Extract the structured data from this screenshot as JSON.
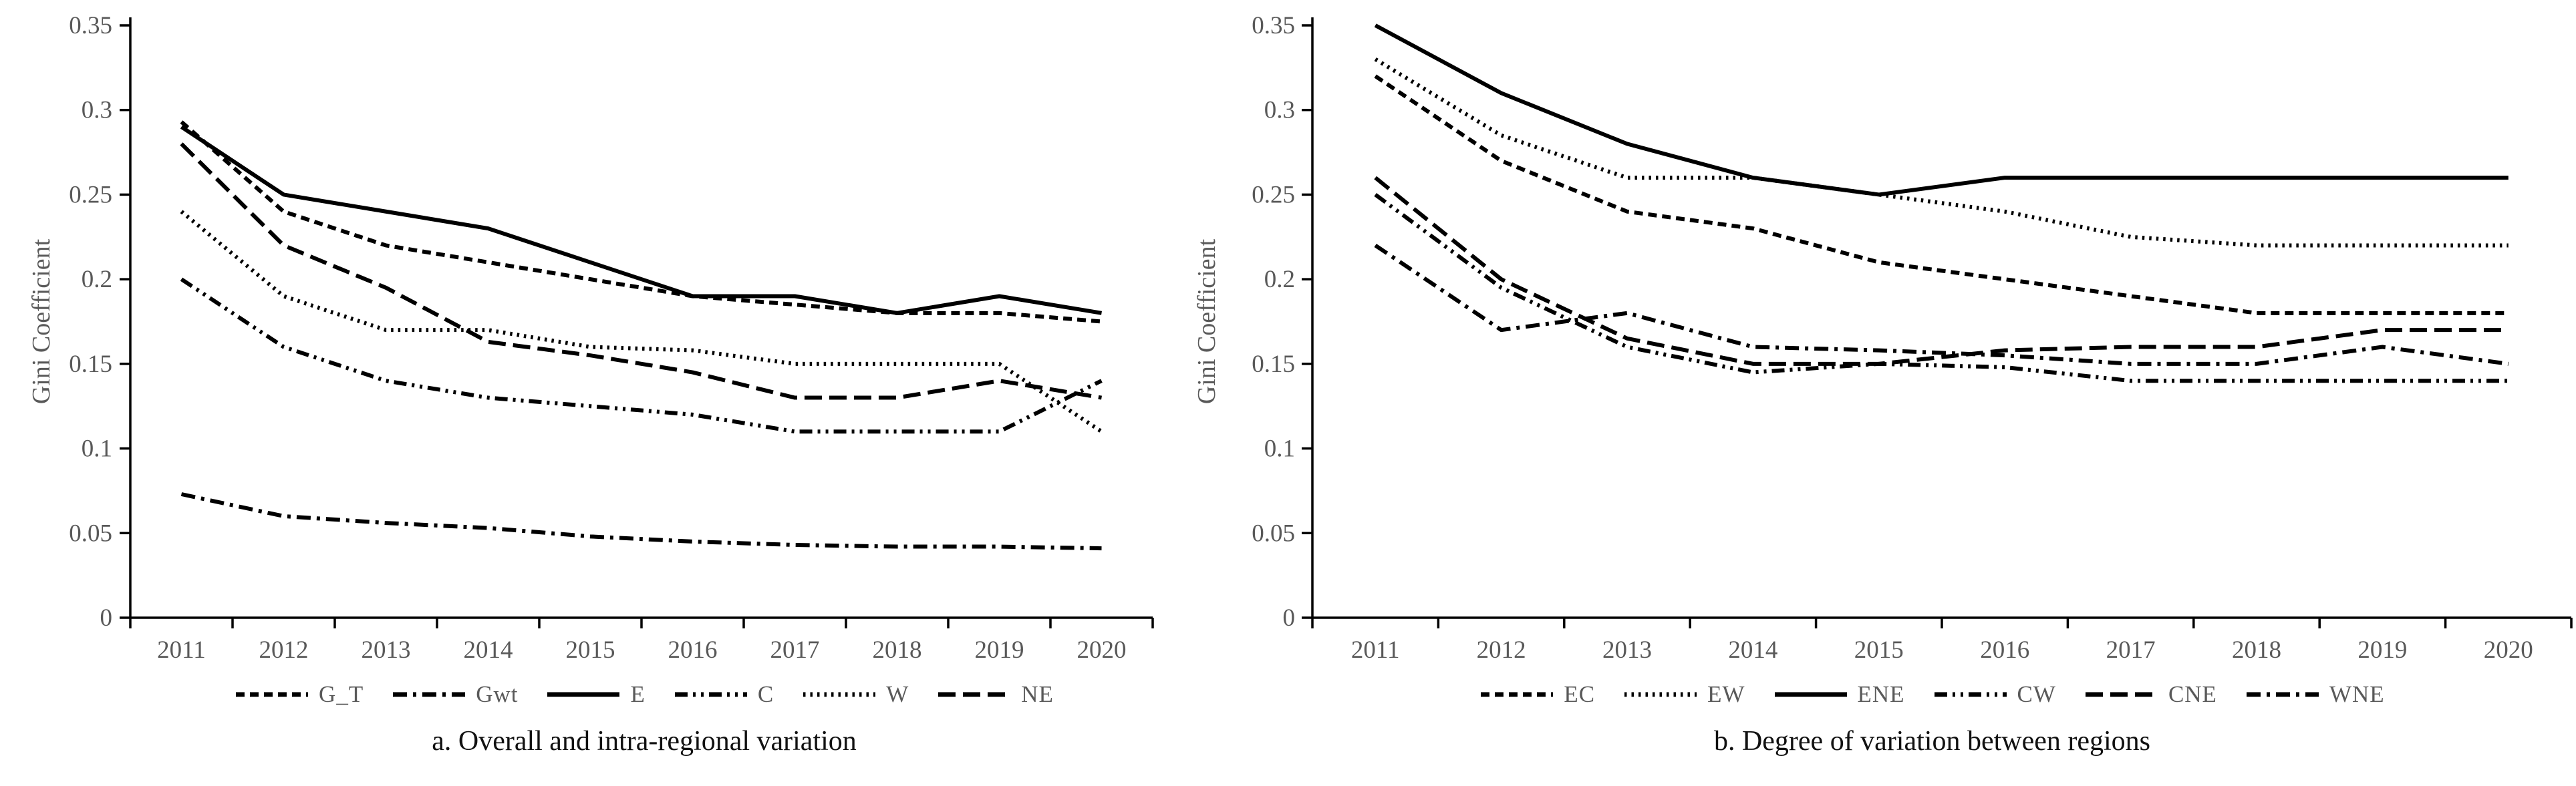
{
  "colors": {
    "line": "#000000",
    "axis": "#000000",
    "tick_label": "#595959",
    "legend_label": "#595959",
    "caption": "#111111",
    "background": "#ffffff"
  },
  "chart_data": [
    {
      "type": "line",
      "panel": "a",
      "title": "a. Overall and intra-regional variation",
      "ylabel": "Gini Coefficient",
      "xlabel": "",
      "grid": false,
      "legend_position": "bottom",
      "ylim": [
        0,
        0.35
      ],
      "y_ticks": [
        "0",
        "0.05",
        "0.1",
        "0.15",
        "0.2",
        "0.25",
        "0.3",
        "0.35"
      ],
      "x": [
        "2011",
        "2012",
        "2013",
        "2014",
        "2015",
        "2016",
        "2017",
        "2018",
        "2019",
        "2020"
      ],
      "series": [
        {
          "name": "G_T",
          "style": "short-dash",
          "values": [
            0.293,
            0.24,
            0.22,
            0.21,
            0.2,
            0.19,
            0.185,
            0.18,
            0.18,
            0.175
          ]
        },
        {
          "name": "Gwt",
          "style": "dash-dot",
          "values": [
            0.073,
            0.06,
            0.056,
            0.053,
            0.048,
            0.045,
            0.043,
            0.042,
            0.042,
            0.041
          ]
        },
        {
          "name": "E",
          "style": "solid",
          "values": [
            0.29,
            0.25,
            0.24,
            0.23,
            0.21,
            0.19,
            0.19,
            0.18,
            0.19,
            0.18
          ]
        },
        {
          "name": "C",
          "style": "dash-dot-dot",
          "values": [
            0.2,
            0.16,
            0.14,
            0.13,
            0.125,
            0.12,
            0.11,
            0.11,
            0.11,
            0.14
          ]
        },
        {
          "name": "W",
          "style": "dotted",
          "values": [
            0.24,
            0.19,
            0.17,
            0.17,
            0.16,
            0.158,
            0.15,
            0.15,
            0.15,
            0.11
          ]
        },
        {
          "name": "NE",
          "style": "long-dash",
          "values": [
            0.28,
            0.22,
            0.195,
            0.163,
            0.155,
            0.145,
            0.13,
            0.13,
            0.14,
            0.13
          ]
        }
      ]
    },
    {
      "type": "line",
      "panel": "b",
      "title": "b. Degree of variation between regions",
      "ylabel": "Gini Coefficient",
      "xlabel": "",
      "grid": false,
      "legend_position": "bottom",
      "ylim": [
        0,
        0.35
      ],
      "y_ticks": [
        "0",
        "0.05",
        "0.1",
        "0.15",
        "0.2",
        "0.25",
        "0.3",
        "0.35"
      ],
      "x": [
        "2011",
        "2012",
        "2013",
        "2014",
        "2015",
        "2016",
        "2017",
        "2018",
        "2019",
        "2020"
      ],
      "series": [
        {
          "name": "EC",
          "style": "short-dash",
          "values": [
            0.32,
            0.27,
            0.24,
            0.23,
            0.21,
            0.2,
            0.19,
            0.18,
            0.18,
            0.18
          ]
        },
        {
          "name": "EW",
          "style": "dotted",
          "values": [
            0.33,
            0.285,
            0.26,
            0.26,
            0.25,
            0.24,
            0.225,
            0.22,
            0.22,
            0.22
          ]
        },
        {
          "name": "ENE",
          "style": "solid",
          "values": [
            0.35,
            0.31,
            0.28,
            0.26,
            0.25,
            0.26,
            0.26,
            0.26,
            0.26,
            0.26
          ]
        },
        {
          "name": "CW",
          "style": "dash-dot-dot",
          "values": [
            0.25,
            0.195,
            0.16,
            0.145,
            0.15,
            0.148,
            0.14,
            0.14,
            0.14,
            0.14
          ]
        },
        {
          "name": "CNE",
          "style": "long-dash",
          "values": [
            0.26,
            0.2,
            0.165,
            0.15,
            0.15,
            0.158,
            0.16,
            0.16,
            0.17,
            0.17
          ]
        },
        {
          "name": "WNE",
          "style": "dash-dot",
          "values": [
            0.22,
            0.17,
            0.18,
            0.16,
            0.158,
            0.155,
            0.15,
            0.15,
            0.16,
            0.15
          ]
        }
      ]
    }
  ]
}
